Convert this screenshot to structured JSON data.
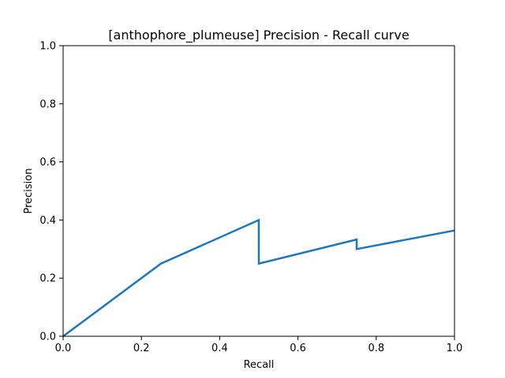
{
  "chart_data": {
    "type": "line",
    "title": "[anthophore_plumeuse] Precision - Recall curve",
    "xlabel": "Recall",
    "ylabel": "Precision",
    "xlim": [
      0,
      1
    ],
    "ylim": [
      0,
      1
    ],
    "xticks": [
      "0.0",
      "0.2",
      "0.4",
      "0.6",
      "0.8",
      "1.0"
    ],
    "yticks": [
      "0.0",
      "0.2",
      "0.4",
      "0.6",
      "0.8",
      "1.0"
    ],
    "grid": false,
    "series": [
      {
        "color": "#1f77b4",
        "x": [
          0.0,
          0.25,
          0.5,
          0.5,
          0.75,
          0.75,
          1.0
        ],
        "y": [
          0.0,
          0.25,
          0.4,
          0.25,
          0.333,
          0.3,
          0.364
        ]
      }
    ]
  }
}
